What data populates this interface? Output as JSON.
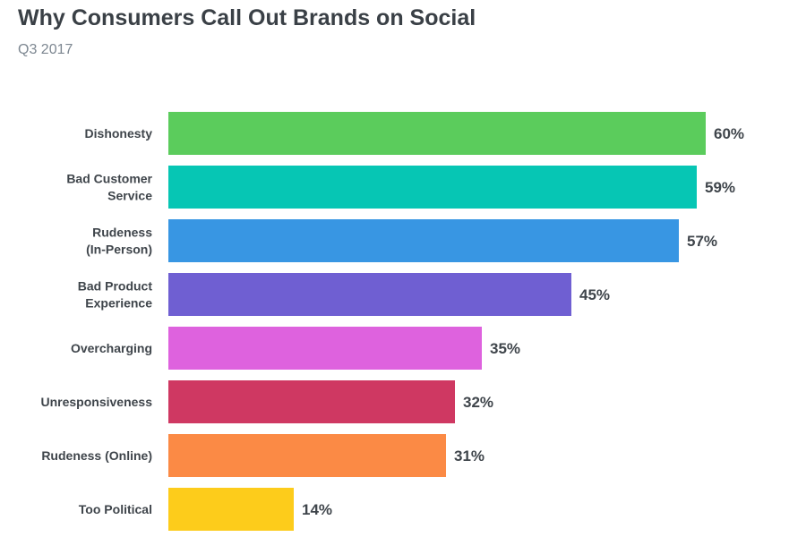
{
  "header": {
    "title": "Why Consumers Call Out Brands on Social",
    "subtitle": "Q3 2017"
  },
  "chart_data": {
    "type": "bar",
    "orientation": "horizontal",
    "title": "Why Consumers Call Out Brands on Social",
    "subtitle": "Q3 2017",
    "xlabel": "",
    "ylabel": "",
    "xlim": [
      0,
      60
    ],
    "grid": false,
    "legend": "none",
    "categories": [
      [
        "Dishonesty"
      ],
      [
        "Bad Customer",
        "Service"
      ],
      [
        "Rudeness",
        "(In-Person)"
      ],
      [
        "Bad Product",
        "Experience"
      ],
      [
        "Overcharging"
      ],
      [
        "Unresponsiveness"
      ],
      [
        "Rudeness (Online)"
      ],
      [
        "Too Political"
      ]
    ],
    "values": [
      60,
      59,
      57,
      45,
      35,
      32,
      31,
      14
    ],
    "value_labels": [
      "60%",
      "59%",
      "57%",
      "45%",
      "35%",
      "32%",
      "31%",
      "14%"
    ],
    "colors": [
      "#5bcc5c",
      "#06c6b4",
      "#3896e3",
      "#6f5fd2",
      "#de62de",
      "#cf3862",
      "#fb8a45",
      "#fdcc1b"
    ]
  }
}
